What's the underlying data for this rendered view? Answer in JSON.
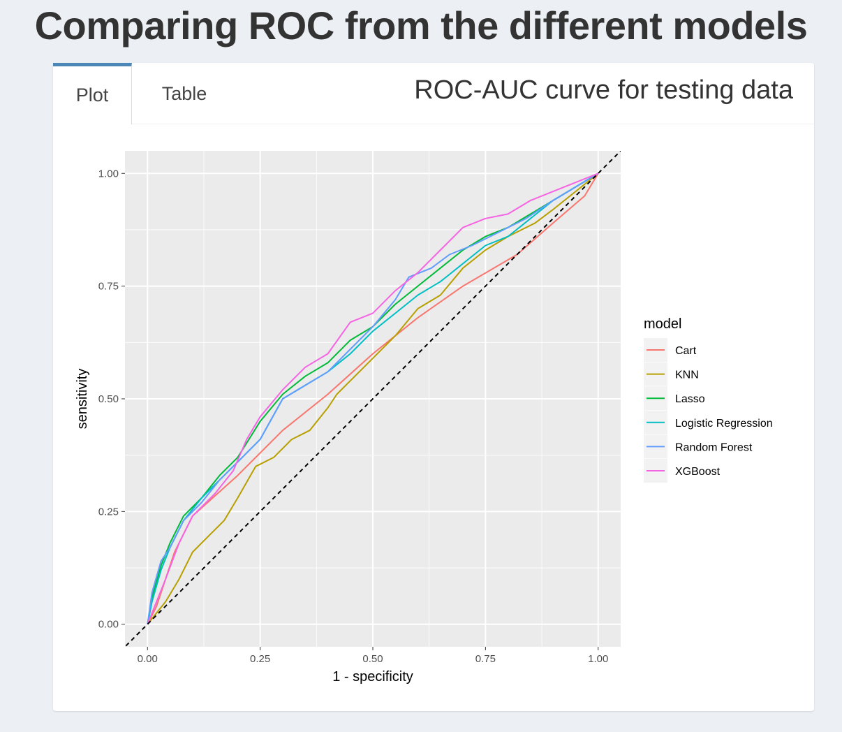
{
  "header": {
    "title": "Comparing ROC from the different models"
  },
  "tabs": [
    {
      "label": "Plot",
      "active": true
    },
    {
      "label": "Table",
      "active": false
    }
  ],
  "box": {
    "title": "ROC-AUC curve for testing data"
  },
  "chart_data": {
    "type": "line",
    "title": "",
    "xlabel": "1 - specificity",
    "ylabel": "sensitivity",
    "xlim": [
      -0.05,
      1.05
    ],
    "ylim": [
      -0.05,
      1.05
    ],
    "x_ticks": [
      "0.00",
      "0.25",
      "0.50",
      "0.75",
      "1.00"
    ],
    "y_ticks": [
      "0.00",
      "0.25",
      "0.50",
      "0.75",
      "1.00"
    ],
    "grid": true,
    "background": "#ebebeb",
    "reference_line": {
      "from": [
        0,
        0
      ],
      "to": [
        1,
        1
      ],
      "style": "dashed",
      "color": "#000000"
    },
    "legend": {
      "title": "model",
      "position": "right"
    },
    "series": [
      {
        "name": "Cart",
        "color": "#f8766d",
        "points": [
          [
            0,
            0
          ],
          [
            0.02,
            0.04
          ],
          [
            0.04,
            0.1
          ],
          [
            0.06,
            0.16
          ],
          [
            0.1,
            0.24
          ],
          [
            0.2,
            0.33
          ],
          [
            0.3,
            0.43
          ],
          [
            0.4,
            0.51
          ],
          [
            0.5,
            0.6
          ],
          [
            0.6,
            0.68
          ],
          [
            0.7,
            0.75
          ],
          [
            0.82,
            0.82
          ],
          [
            0.9,
            0.89
          ],
          [
            0.97,
            0.95
          ],
          [
            1,
            1
          ]
        ]
      },
      {
        "name": "KNN",
        "color": "#b79f00",
        "points": [
          [
            0,
            0
          ],
          [
            0.04,
            0.05
          ],
          [
            0.07,
            0.1
          ],
          [
            0.1,
            0.16
          ],
          [
            0.14,
            0.2
          ],
          [
            0.17,
            0.23
          ],
          [
            0.2,
            0.28
          ],
          [
            0.24,
            0.35
          ],
          [
            0.28,
            0.37
          ],
          [
            0.32,
            0.41
          ],
          [
            0.36,
            0.43
          ],
          [
            0.4,
            0.48
          ],
          [
            0.42,
            0.51
          ],
          [
            0.45,
            0.54
          ],
          [
            0.5,
            0.59
          ],
          [
            0.55,
            0.64
          ],
          [
            0.6,
            0.7
          ],
          [
            0.65,
            0.73
          ],
          [
            0.7,
            0.79
          ],
          [
            0.75,
            0.83
          ],
          [
            0.8,
            0.86
          ],
          [
            0.86,
            0.89
          ],
          [
            0.9,
            0.92
          ],
          [
            0.95,
            0.96
          ],
          [
            1,
            1
          ]
        ]
      },
      {
        "name": "Lasso",
        "color": "#00ba38",
        "points": [
          [
            0,
            0
          ],
          [
            0.01,
            0.06
          ],
          [
            0.03,
            0.13
          ],
          [
            0.05,
            0.18
          ],
          [
            0.08,
            0.24
          ],
          [
            0.12,
            0.28
          ],
          [
            0.16,
            0.33
          ],
          [
            0.2,
            0.37
          ],
          [
            0.25,
            0.45
          ],
          [
            0.3,
            0.51
          ],
          [
            0.35,
            0.55
          ],
          [
            0.4,
            0.58
          ],
          [
            0.45,
            0.63
          ],
          [
            0.5,
            0.66
          ],
          [
            0.55,
            0.71
          ],
          [
            0.6,
            0.75
          ],
          [
            0.65,
            0.79
          ],
          [
            0.7,
            0.83
          ],
          [
            0.75,
            0.86
          ],
          [
            0.8,
            0.88
          ],
          [
            0.85,
            0.91
          ],
          [
            0.9,
            0.94
          ],
          [
            0.95,
            0.97
          ],
          [
            1,
            1
          ]
        ]
      },
      {
        "name": "Logistic Regression",
        "color": "#00bfc4",
        "points": [
          [
            0,
            0
          ],
          [
            0.01,
            0.05
          ],
          [
            0.03,
            0.12
          ],
          [
            0.05,
            0.17
          ],
          [
            0.08,
            0.23
          ],
          [
            0.12,
            0.28
          ],
          [
            0.16,
            0.32
          ],
          [
            0.2,
            0.36
          ],
          [
            0.25,
            0.41
          ],
          [
            0.3,
            0.5
          ],
          [
            0.35,
            0.53
          ],
          [
            0.4,
            0.56
          ],
          [
            0.45,
            0.6
          ],
          [
            0.5,
            0.65
          ],
          [
            0.55,
            0.69
          ],
          [
            0.6,
            0.73
          ],
          [
            0.65,
            0.76
          ],
          [
            0.7,
            0.8
          ],
          [
            0.75,
            0.84
          ],
          [
            0.8,
            0.86
          ],
          [
            0.85,
            0.9
          ],
          [
            0.9,
            0.94
          ],
          [
            0.95,
            0.97
          ],
          [
            1,
            1
          ]
        ]
      },
      {
        "name": "Random Forest",
        "color": "#619cff",
        "points": [
          [
            0,
            0
          ],
          [
            0.01,
            0.07
          ],
          [
            0.03,
            0.14
          ],
          [
            0.05,
            0.17
          ],
          [
            0.08,
            0.23
          ],
          [
            0.12,
            0.27
          ],
          [
            0.16,
            0.32
          ],
          [
            0.2,
            0.36
          ],
          [
            0.25,
            0.41
          ],
          [
            0.3,
            0.5
          ],
          [
            0.35,
            0.53
          ],
          [
            0.4,
            0.56
          ],
          [
            0.45,
            0.61
          ],
          [
            0.5,
            0.66
          ],
          [
            0.55,
            0.72
          ],
          [
            0.58,
            0.77
          ],
          [
            0.63,
            0.79
          ],
          [
            0.67,
            0.82
          ],
          [
            0.72,
            0.84
          ],
          [
            0.78,
            0.87
          ],
          [
            0.84,
            0.9
          ],
          [
            0.9,
            0.94
          ],
          [
            0.95,
            0.97
          ],
          [
            1,
            1
          ]
        ]
      },
      {
        "name": "XGBoost",
        "color": "#f564e3",
        "points": [
          [
            0,
            0
          ],
          [
            0.02,
            0.05
          ],
          [
            0.04,
            0.1
          ],
          [
            0.07,
            0.18
          ],
          [
            0.1,
            0.24
          ],
          [
            0.15,
            0.29
          ],
          [
            0.19,
            0.34
          ],
          [
            0.22,
            0.41
          ],
          [
            0.25,
            0.46
          ],
          [
            0.3,
            0.52
          ],
          [
            0.35,
            0.57
          ],
          [
            0.4,
            0.6
          ],
          [
            0.45,
            0.67
          ],
          [
            0.5,
            0.69
          ],
          [
            0.55,
            0.74
          ],
          [
            0.6,
            0.78
          ],
          [
            0.65,
            0.83
          ],
          [
            0.7,
            0.88
          ],
          [
            0.75,
            0.9
          ],
          [
            0.8,
            0.91
          ],
          [
            0.85,
            0.94
          ],
          [
            0.9,
            0.96
          ],
          [
            0.95,
            0.98
          ],
          [
            1,
            1
          ]
        ]
      }
    ]
  }
}
